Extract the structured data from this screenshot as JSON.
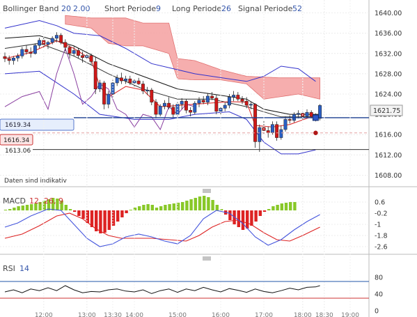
{
  "header": {
    "bollinger_label": "Bollinger Band",
    "bollinger_period": "20",
    "bollinger_dev": "2.00",
    "short_label": "Short Periode",
    "short_value": "9",
    "long_label": "Long Periode",
    "long_value": "26",
    "signal_label": "Signal Periode",
    "signal_value": "52"
  },
  "notice": "Daten sind indikativ",
  "price_tags": {
    "current": "1621.75",
    "blue_line": "1619.34",
    "red_dashed": "1616.34",
    "black_line": "1613.06"
  },
  "macd_panel": {
    "label": "MACD",
    "params": "12, 26, 9"
  },
  "rsi_panel": {
    "label": "RSI",
    "param": "14"
  },
  "colors": {
    "up_candle": "#2a5fc4",
    "down_candle": "#d01818",
    "cloud": "#f4a0a0",
    "bollinger": "#3333cc",
    "macd_up": "#88c828",
    "macd_down": "#dd2222"
  },
  "chart_data": [
    {
      "type": "candlestick",
      "title": "",
      "y_ticks": [
        "1640.00",
        "1636.00",
        "1632.00",
        "1628.00",
        "1624.00",
        "1620.00",
        "1616.00",
        "1612.00",
        "1608.00"
      ],
      "ylim": [
        1606,
        1642
      ],
      "x_ticks": [
        "12:00",
        "13:00",
        "13:30",
        "14:00",
        "15:00",
        "16:00",
        "17:00",
        "18:00",
        "18:30",
        "19:00"
      ],
      "ohlc": [
        [
          1631.4,
          1632.2,
          1630.3,
          1631.0
        ],
        [
          1631.0,
          1631.6,
          1629.8,
          1630.6
        ],
        [
          1630.6,
          1631.5,
          1629.8,
          1631.1
        ],
        [
          1631.1,
          1632.0,
          1630.4,
          1631.5
        ],
        [
          1631.5,
          1633.3,
          1631.0,
          1632.8
        ],
        [
          1632.8,
          1633.6,
          1631.8,
          1632.3
        ],
        [
          1632.3,
          1633.2,
          1631.2,
          1632.0
        ],
        [
          1632.0,
          1634.0,
          1631.8,
          1633.6
        ],
        [
          1633.6,
          1635.1,
          1633.0,
          1634.6
        ],
        [
          1634.6,
          1635.3,
          1633.2,
          1633.8
        ],
        [
          1633.8,
          1634.5,
          1632.9,
          1634.2
        ],
        [
          1634.2,
          1635.4,
          1633.8,
          1635.0
        ],
        [
          1635.0,
          1636.2,
          1634.2,
          1635.6
        ],
        [
          1635.6,
          1636.0,
          1633.8,
          1634.2
        ],
        [
          1634.2,
          1634.8,
          1632.4,
          1633.2
        ],
        [
          1633.2,
          1633.6,
          1631.0,
          1632.0
        ],
        [
          1632.0,
          1633.4,
          1631.4,
          1632.6
        ],
        [
          1632.6,
          1633.0,
          1631.0,
          1631.6
        ],
        [
          1631.6,
          1632.4,
          1630.2,
          1631.2
        ],
        [
          1631.2,
          1632.3,
          1630.8,
          1631.6
        ],
        [
          1631.6,
          1632.0,
          1629.8,
          1630.4
        ],
        [
          1630.4,
          1631.4,
          1624.0,
          1625.0
        ],
        [
          1625.0,
          1626.8,
          1624.4,
          1626.2
        ],
        [
          1626.2,
          1626.6,
          1621.0,
          1622.0
        ],
        [
          1622.0,
          1624.6,
          1621.2,
          1624.0
        ],
        [
          1624.0,
          1626.8,
          1623.4,
          1626.2
        ],
        [
          1626.2,
          1627.8,
          1625.6,
          1627.2
        ],
        [
          1627.2,
          1628.2,
          1626.0,
          1626.6
        ],
        [
          1626.6,
          1627.6,
          1626.0,
          1627.0
        ],
        [
          1627.0,
          1627.6,
          1625.8,
          1626.2
        ],
        [
          1626.2,
          1627.0,
          1625.4,
          1626.6
        ],
        [
          1626.6,
          1627.2,
          1625.8,
          1626.0
        ],
        [
          1626.0,
          1626.6,
          1624.0,
          1624.6
        ],
        [
          1624.6,
          1625.4,
          1623.8,
          1624.8
        ],
        [
          1624.8,
          1625.2,
          1621.8,
          1622.4
        ],
        [
          1622.4,
          1623.0,
          1619.2,
          1620.0
        ],
        [
          1620.0,
          1622.0,
          1619.6,
          1621.6
        ],
        [
          1621.6,
          1622.8,
          1621.0,
          1622.2
        ],
        [
          1622.2,
          1623.4,
          1621.0,
          1621.4
        ],
        [
          1621.4,
          1622.0,
          1619.4,
          1620.0
        ],
        [
          1620.0,
          1622.4,
          1619.6,
          1622.0
        ],
        [
          1622.0,
          1623.2,
          1621.0,
          1622.6
        ],
        [
          1622.6,
          1623.0,
          1620.2,
          1620.8
        ],
        [
          1620.8,
          1621.4,
          1619.6,
          1620.4
        ],
        [
          1620.4,
          1622.6,
          1620.0,
          1622.2
        ],
        [
          1622.2,
          1623.4,
          1621.4,
          1622.8
        ],
        [
          1622.8,
          1623.6,
          1622.0,
          1622.4
        ],
        [
          1622.4,
          1624.2,
          1621.8,
          1623.6
        ],
        [
          1623.6,
          1624.4,
          1622.8,
          1623.2
        ],
        [
          1623.2,
          1623.8,
          1620.0,
          1620.6
        ],
        [
          1620.6,
          1621.6,
          1619.8,
          1621.2
        ],
        [
          1621.2,
          1622.4,
          1620.6,
          1621.8
        ],
        [
          1621.8,
          1624.0,
          1621.2,
          1623.4
        ],
        [
          1623.4,
          1624.6,
          1622.6,
          1623.8
        ],
        [
          1623.8,
          1624.4,
          1622.6,
          1623.0
        ],
        [
          1623.0,
          1623.6,
          1622.0,
          1622.6
        ],
        [
          1622.6,
          1623.4,
          1621.2,
          1621.8
        ],
        [
          1621.8,
          1622.4,
          1621.0,
          1622.0
        ],
        [
          1622.0,
          1622.2,
          1613.4,
          1614.6
        ],
        [
          1614.6,
          1618.0,
          1612.6,
          1617.4
        ],
        [
          1617.4,
          1618.8,
          1616.0,
          1616.8
        ],
        [
          1616.8,
          1617.6,
          1615.4,
          1616.4
        ],
        [
          1616.4,
          1618.6,
          1616.0,
          1618.0
        ],
        [
          1618.0,
          1618.6,
          1614.8,
          1615.4
        ],
        [
          1615.4,
          1617.8,
          1615.0,
          1617.0
        ],
        [
          1617.0,
          1619.6,
          1616.6,
          1619.0
        ],
        [
          1619.0,
          1619.8,
          1618.2,
          1618.8
        ],
        [
          1618.8,
          1620.4,
          1618.4,
          1620.0
        ],
        [
          1620.0,
          1620.8,
          1619.2,
          1620.2
        ],
        [
          1620.2,
          1620.6,
          1619.0,
          1619.6
        ],
        [
          1619.6,
          1621.0,
          1619.2,
          1620.4
        ],
        [
          1620.4,
          1620.8,
          1619.2,
          1619.6
        ],
        [
          1619.6,
          1620.2,
          1618.6,
          1619.2
        ],
        [
          1619.2,
          1622.0,
          1618.8,
          1621.75
        ]
      ],
      "bollinger_mid": [
        [
          0,
          1633.0
        ],
        [
          8,
          1634.0
        ],
        [
          16,
          1631.5
        ],
        [
          24,
          1628.0
        ],
        [
          32,
          1625.0
        ],
        [
          40,
          1623.0
        ],
        [
          48,
          1623.0
        ],
        [
          56,
          1621.5
        ],
        [
          64,
          1619.5
        ],
        [
          72,
          1619.5
        ]
      ],
      "bollinger_upper": [
        [
          0,
          1637.0
        ],
        [
          8,
          1638.5
        ],
        [
          12,
          1637.5
        ],
        [
          16,
          1636.0
        ],
        [
          22,
          1635.5
        ],
        [
          28,
          1633.0
        ],
        [
          34,
          1630.0
        ],
        [
          44,
          1628.0
        ],
        [
          52,
          1627.0
        ],
        [
          56,
          1626.5
        ],
        [
          60,
          1627.5
        ],
        [
          64,
          1629.5
        ],
        [
          68,
          1629.0
        ],
        [
          72,
          1626.5
        ]
      ],
      "bollinger_lower": [
        [
          0,
          1628.0
        ],
        [
          8,
          1628.5
        ],
        [
          16,
          1624.0
        ],
        [
          22,
          1620.0
        ],
        [
          30,
          1619.0
        ],
        [
          38,
          1619.0
        ],
        [
          44,
          1620.0
        ],
        [
          52,
          1620.5
        ],
        [
          56,
          1619.0
        ],
        [
          60,
          1614.5
        ],
        [
          64,
          1612.2
        ],
        [
          68,
          1612.2
        ],
        [
          72,
          1613.0
        ]
      ],
      "tenkan": [
        [
          0,
          1631.0
        ],
        [
          6,
          1632.2
        ],
        [
          12,
          1634.5
        ],
        [
          16,
          1633.0
        ],
        [
          20,
          1630.8
        ],
        [
          22,
          1625.5
        ],
        [
          24,
          1623.4
        ],
        [
          28,
          1625.5
        ],
        [
          32,
          1624.8
        ],
        [
          36,
          1621.5
        ],
        [
          44,
          1622.0
        ],
        [
          52,
          1622.5
        ],
        [
          56,
          1622.4
        ],
        [
          58,
          1617.8
        ],
        [
          62,
          1617.5
        ],
        [
          66,
          1618.0
        ],
        [
          70,
          1619.2
        ],
        [
          73,
          1620.0
        ]
      ],
      "kijun": [
        [
          0,
          1635.0
        ],
        [
          8,
          1635.5
        ],
        [
          16,
          1633.5
        ],
        [
          24,
          1630.0
        ],
        [
          32,
          1627.5
        ],
        [
          40,
          1625.0
        ],
        [
          48,
          1624.0
        ],
        [
          56,
          1623.0
        ],
        [
          60,
          1621.0
        ],
        [
          66,
          1620.0
        ],
        [
          73,
          1620.0
        ]
      ],
      "chikou": [
        [
          0,
          1621.5
        ],
        [
          4,
          1623.5
        ],
        [
          8,
          1624.5
        ],
        [
          10,
          1621.0
        ],
        [
          12,
          1628.0
        ],
        [
          14,
          1633.0
        ],
        [
          16,
          1628.0
        ],
        [
          18,
          1622.0
        ],
        [
          20,
          1623.5
        ],
        [
          22,
          1626.0
        ],
        [
          24,
          1625.0
        ],
        [
          26,
          1621.0
        ],
        [
          28,
          1620.0
        ],
        [
          30,
          1617.5
        ],
        [
          32,
          1620.0
        ],
        [
          34,
          1619.5
        ],
        [
          36,
          1617.0
        ],
        [
          38,
          1621.5
        ],
        [
          40,
          1620.0
        ],
        [
          42,
          1622.0
        ],
        [
          44,
          1621.5
        ]
      ],
      "cloud_top": [
        [
          14,
          1639.5
        ],
        [
          20,
          1639.0
        ],
        [
          28,
          1639.0
        ],
        [
          32,
          1638.0
        ],
        [
          38,
          1638.0
        ],
        [
          40,
          1631.0
        ],
        [
          44,
          1630.6
        ],
        [
          50,
          1628.8
        ],
        [
          56,
          1627.5
        ],
        [
          64,
          1627.2
        ],
        [
          70,
          1627.2
        ],
        [
          73,
          1627.2
        ]
      ],
      "cloud_bottom": [
        [
          14,
          1637.8
        ],
        [
          20,
          1637.0
        ],
        [
          24,
          1634.0
        ],
        [
          28,
          1633.5
        ],
        [
          32,
          1633.5
        ],
        [
          38,
          1632.0
        ],
        [
          40,
          1627.0
        ],
        [
          44,
          1626.8
        ],
        [
          50,
          1626.8
        ],
        [
          56,
          1626.0
        ],
        [
          60,
          1623.0
        ],
        [
          64,
          1623.5
        ],
        [
          68,
          1624.0
        ],
        [
          73,
          1623.0
        ]
      ]
    },
    {
      "type": "bar",
      "title": "MACD",
      "y_ticks": [
        "0.6",
        "-0.2",
        "-1",
        "-1.8",
        "-2.6"
      ],
      "ylim": [
        -3.0,
        1.0
      ],
      "histogram": [
        0.05,
        0.1,
        0.2,
        0.3,
        0.35,
        0.4,
        0.45,
        0.5,
        0.6,
        0.7,
        0.8,
        0.9,
        0.85,
        0.7,
        0.4,
        0.1,
        -0.1,
        -0.4,
        -0.6,
        -0.9,
        -1.2,
        -1.5,
        -1.65,
        -1.6,
        -1.4,
        -1.1,
        -0.8,
        -0.5,
        -0.2,
        0.05,
        0.2,
        0.3,
        0.4,
        0.45,
        0.4,
        0.2,
        0.3,
        0.4,
        0.45,
        0.5,
        0.55,
        0.6,
        0.7,
        0.8,
        0.9,
        1.0,
        1.05,
        0.95,
        0.75,
        0.4,
        0.1,
        -0.3,
        -0.7,
        -1.0,
        -1.2,
        -1.4,
        -1.3,
        -1.1,
        -0.8,
        -0.4,
        -0.1,
        0.1,
        0.3,
        0.4,
        0.5,
        0.55,
        0.6,
        0.6
      ],
      "macd_line": [
        [
          0,
          -1.2
        ],
        [
          3,
          -0.9
        ],
        [
          6,
          -0.4
        ],
        [
          10,
          0.1
        ],
        [
          13,
          0.0
        ],
        [
          16,
          -1.0
        ],
        [
          19,
          -2.0
        ],
        [
          22,
          -2.6
        ],
        [
          25,
          -2.4
        ],
        [
          28,
          -1.9
        ],
        [
          31,
          -1.7
        ],
        [
          34,
          -1.9
        ],
        [
          37,
          -2.2
        ],
        [
          40,
          -2.4
        ],
        [
          43,
          -1.8
        ],
        [
          46,
          -0.6
        ],
        [
          49,
          0.0
        ],
        [
          52,
          -0.2
        ],
        [
          55,
          -0.9
        ],
        [
          58,
          -1.9
        ],
        [
          61,
          -2.5
        ],
        [
          64,
          -2.1
        ],
        [
          67,
          -1.4
        ],
        [
          70,
          -0.8
        ],
        [
          73,
          -0.3
        ]
      ],
      "signal_line": [
        [
          0,
          -2.0
        ],
        [
          4,
          -1.7
        ],
        [
          8,
          -1.1
        ],
        [
          12,
          -0.4
        ],
        [
          15,
          -0.2
        ],
        [
          18,
          -0.6
        ],
        [
          21,
          -1.3
        ],
        [
          24,
          -1.8
        ],
        [
          27,
          -2.0
        ],
        [
          30,
          -2.0
        ],
        [
          34,
          -2.0
        ],
        [
          38,
          -2.1
        ],
        [
          42,
          -2.2
        ],
        [
          45,
          -1.8
        ],
        [
          48,
          -1.2
        ],
        [
          51,
          -0.8
        ],
        [
          54,
          -0.7
        ],
        [
          57,
          -1.0
        ],
        [
          60,
          -1.6
        ],
        [
          63,
          -2.1
        ],
        [
          66,
          -2.2
        ],
        [
          69,
          -1.8
        ],
        [
          73,
          -1.2
        ]
      ]
    },
    {
      "type": "line",
      "title": "RSI",
      "y_ticks": [
        "80",
        "40",
        "0"
      ],
      "ylim": [
        0,
        100
      ],
      "levels": [
        70,
        30
      ],
      "rsi": [
        [
          0,
          45
        ],
        [
          2,
          50
        ],
        [
          4,
          43
        ],
        [
          6,
          52
        ],
        [
          8,
          48
        ],
        [
          10,
          55
        ],
        [
          12,
          48
        ],
        [
          14,
          60
        ],
        [
          16,
          50
        ],
        [
          18,
          43
        ],
        [
          20,
          46
        ],
        [
          22,
          45
        ],
        [
          24,
          50
        ],
        [
          26,
          52
        ],
        [
          28,
          47
        ],
        [
          30,
          45
        ],
        [
          32,
          50
        ],
        [
          34,
          41
        ],
        [
          36,
          48
        ],
        [
          38,
          52
        ],
        [
          40,
          44
        ],
        [
          42,
          52
        ],
        [
          44,
          48
        ],
        [
          46,
          56
        ],
        [
          48,
          50
        ],
        [
          50,
          45
        ],
        [
          52,
          53
        ],
        [
          54,
          49
        ],
        [
          56,
          44
        ],
        [
          58,
          52
        ],
        [
          60,
          46
        ],
        [
          62,
          43
        ],
        [
          64,
          48
        ],
        [
          66,
          54
        ],
        [
          68,
          50
        ],
        [
          70,
          56
        ],
        [
          72,
          57
        ],
        [
          73,
          60
        ]
      ]
    }
  ]
}
